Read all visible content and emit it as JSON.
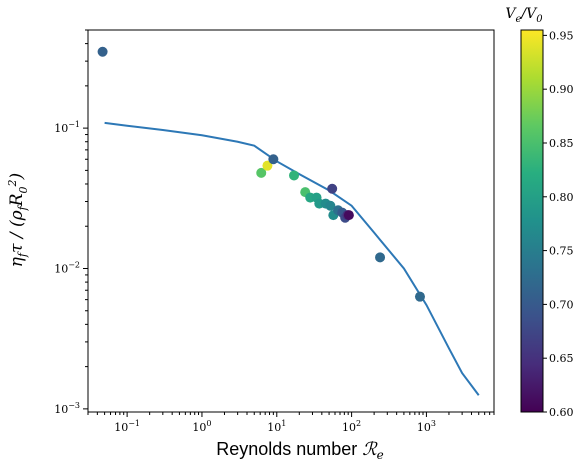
{
  "chart_data": {
    "type": "scatter",
    "xscale": "log",
    "yscale": "log",
    "xlim": [
      0.03,
      8000
    ],
    "ylim": [
      0.00095,
      0.5
    ],
    "xlabel": "Reynolds number ℛe",
    "ylabel": "ηfτ/(ρfR0²)",
    "x_ticks": [
      {
        "value": 0.1,
        "base": "10",
        "exp": "−1"
      },
      {
        "value": 1,
        "base": "10",
        "exp": "0"
      },
      {
        "value": 10,
        "base": "10",
        "exp": "1"
      },
      {
        "value": 100,
        "base": "10",
        "exp": "2"
      },
      {
        "value": 1000,
        "base": "10",
        "exp": "3"
      }
    ],
    "y_ticks": [
      {
        "value": 0.001,
        "base": "10",
        "exp": "−3"
      },
      {
        "value": 0.01,
        "base": "10",
        "exp": "−2"
      },
      {
        "value": 0.1,
        "base": "10",
        "exp": "−1"
      }
    ],
    "points": [
      {
        "x": 0.047,
        "y": 0.35,
        "c": 0.71
      },
      {
        "x": 6.2,
        "y": 0.048,
        "c": 0.86
      },
      {
        "x": 7.5,
        "y": 0.054,
        "c": 0.94
      },
      {
        "x": 9.0,
        "y": 0.06,
        "c": 0.71
      },
      {
        "x": 17,
        "y": 0.046,
        "c": 0.83
      },
      {
        "x": 24,
        "y": 0.035,
        "c": 0.85
      },
      {
        "x": 28,
        "y": 0.032,
        "c": 0.81
      },
      {
        "x": 34,
        "y": 0.032,
        "c": 0.8
      },
      {
        "x": 37,
        "y": 0.029,
        "c": 0.79
      },
      {
        "x": 45,
        "y": 0.029,
        "c": 0.77
      },
      {
        "x": 52,
        "y": 0.028,
        "c": 0.76
      },
      {
        "x": 55,
        "y": 0.037,
        "c": 0.67
      },
      {
        "x": 57,
        "y": 0.024,
        "c": 0.77
      },
      {
        "x": 66,
        "y": 0.026,
        "c": 0.73
      },
      {
        "x": 75,
        "y": 0.025,
        "c": 0.7
      },
      {
        "x": 82,
        "y": 0.023,
        "c": 0.68
      },
      {
        "x": 88,
        "y": 0.024,
        "c": 0.65
      },
      {
        "x": 92,
        "y": 0.024,
        "c": 0.61
      },
      {
        "x": 240,
        "y": 0.012,
        "c": 0.72
      },
      {
        "x": 820,
        "y": 0.0063,
        "c": 0.72
      }
    ],
    "curve": [
      {
        "x": 0.05,
        "y": 0.109
      },
      {
        "x": 0.1,
        "y": 0.104
      },
      {
        "x": 0.3,
        "y": 0.097
      },
      {
        "x": 1,
        "y": 0.089
      },
      {
        "x": 3,
        "y": 0.08
      },
      {
        "x": 5,
        "y": 0.075
      },
      {
        "x": 10,
        "y": 0.058
      },
      {
        "x": 20,
        "y": 0.047
      },
      {
        "x": 50,
        "y": 0.036
      },
      {
        "x": 100,
        "y": 0.028
      },
      {
        "x": 200,
        "y": 0.018
      },
      {
        "x": 500,
        "y": 0.01
      },
      {
        "x": 1000,
        "y": 0.0055
      },
      {
        "x": 2000,
        "y": 0.0027
      },
      {
        "x": 3000,
        "y": 0.0018
      },
      {
        "x": 5000,
        "y": 0.00125
      }
    ],
    "colorbar": {
      "title": "Ve/V0",
      "range": [
        0.6,
        0.955
      ],
      "colormap": "viridis",
      "ticks": [
        "0.60",
        "0.65",
        "0.70",
        "0.75",
        "0.80",
        "0.85",
        "0.90",
        "0.95"
      ]
    },
    "colors": {
      "curve": "#2d78b6",
      "axes": "#000000"
    },
    "grid": false,
    "legend": "none"
  }
}
